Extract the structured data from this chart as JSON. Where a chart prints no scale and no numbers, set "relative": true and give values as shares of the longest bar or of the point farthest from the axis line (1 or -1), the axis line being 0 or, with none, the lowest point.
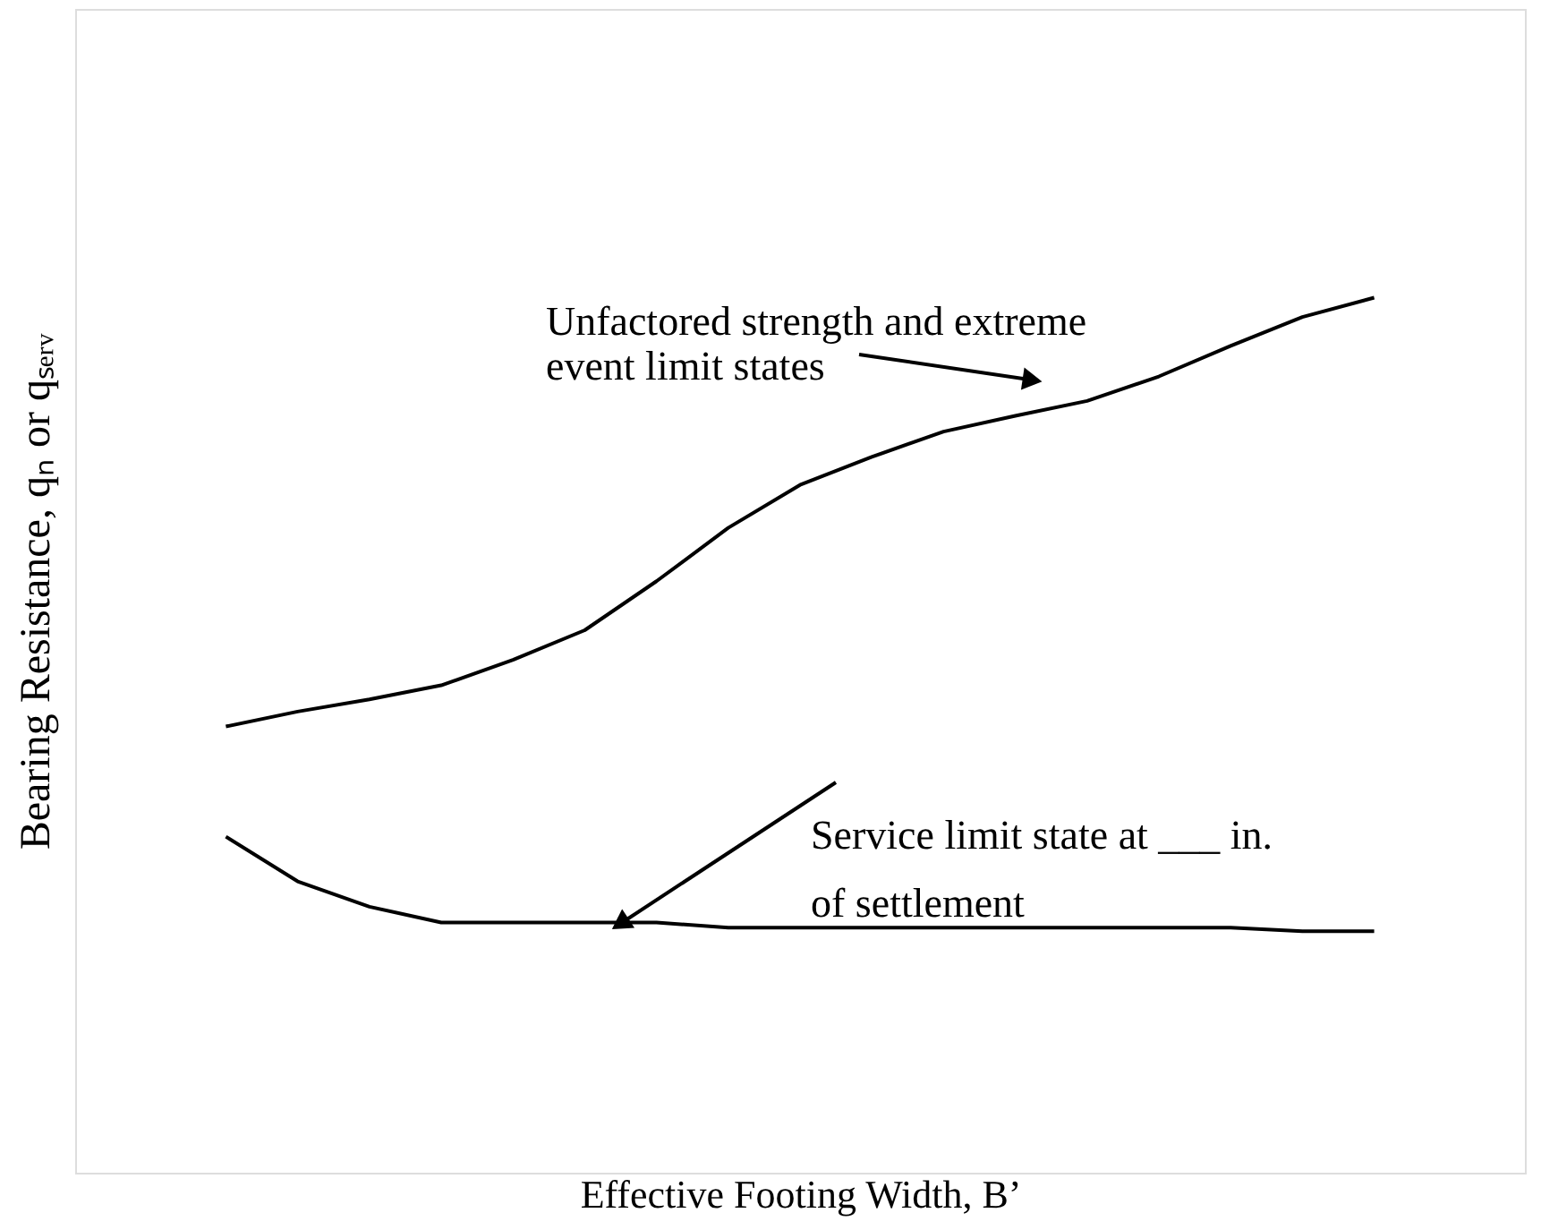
{
  "chart_data": {
    "type": "line",
    "relative": true,
    "xlabel": "Effective Footing Width, B’",
    "ylabel": "Bearing Resistance, qₙ or qₛₑᵣᵥ",
    "categories": [
      null,
      null,
      null,
      null,
      null,
      null,
      null,
      null,
      null,
      null,
      null,
      null,
      null,
      null,
      null,
      null,
      null
    ],
    "series": [
      {
        "color": "#000000",
        "values": [
          0.51,
          0.527,
          0.541,
          0.557,
          0.586,
          0.62,
          0.676,
          0.737,
          0.786,
          0.818,
          0.847,
          0.865,
          0.882,
          0.91,
          0.945,
          0.978,
          1.0
        ]
      },
      {
        "color": "#000000",
        "values": [
          0.384,
          0.333,
          0.304,
          0.286,
          0.286,
          0.286,
          0.286,
          0.28,
          0.28,
          0.28,
          0.28,
          0.28,
          0.28,
          0.28,
          0.28,
          0.276,
          0.276
        ]
      }
    ],
    "annotations": [
      "Unfactored strength and extreme\nevent limit states",
      "Service limit state at ___ in.\nof settlement"
    ],
    "grid": false,
    "line_style": "solid"
  }
}
